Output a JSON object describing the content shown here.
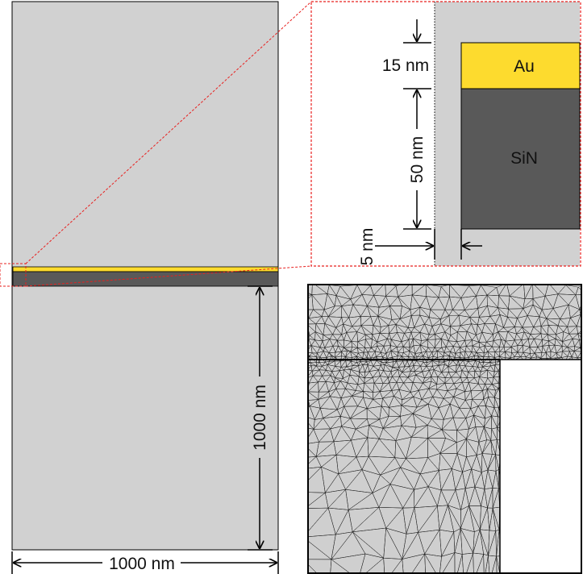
{
  "labels": {
    "width_dim": "1000 nm",
    "height_dim": "1000 nm",
    "au_thickness": "15 nm",
    "sin_thickness": "50 nm",
    "gap": "5 nm",
    "au": "Au",
    "sin": "SiN"
  },
  "colors": {
    "domain": "#d1d1d1",
    "gold": "#fddb2e",
    "silicon_nitride": "#595959",
    "zoom_outline": "#e8201f",
    "mesh": "#1a1a1a",
    "mesh_background": "#cfcfcf"
  }
}
